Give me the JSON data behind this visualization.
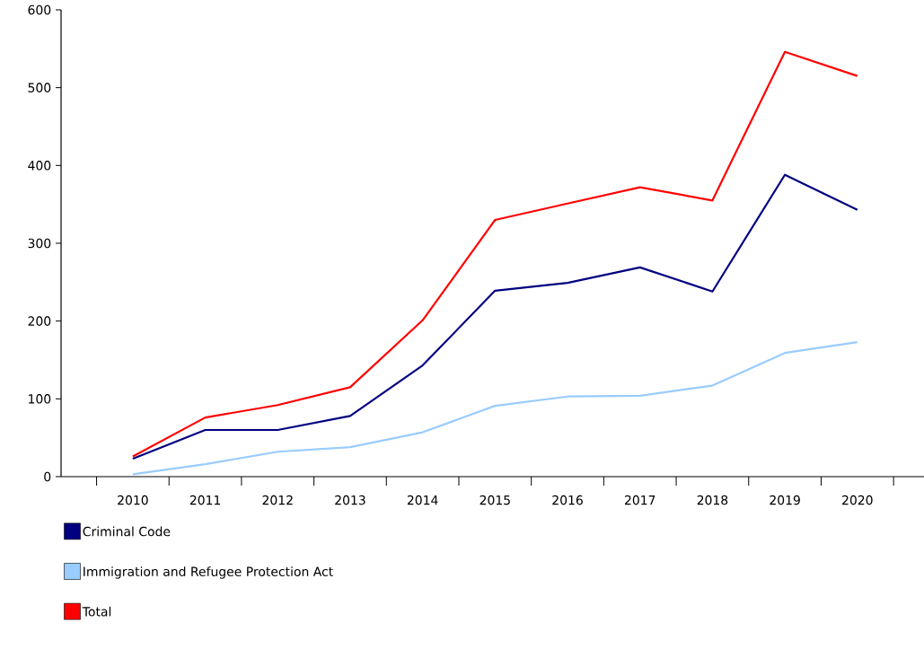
{
  "chart_data": {
    "type": "line",
    "categories": [
      "2010",
      "2011",
      "2012",
      "2013",
      "2014",
      "2015",
      "2016",
      "2017",
      "2018",
      "2019",
      "2020"
    ],
    "series": [
      {
        "name": "Criminal Code",
        "color": "#000080",
        "values": [
          23,
          60,
          60,
          78,
          143,
          239,
          249,
          269,
          238,
          388,
          343
        ]
      },
      {
        "name": "Immigration and Refugee Protection Act",
        "color": "#99ccff",
        "values": [
          3,
          16,
          32,
          38,
          57,
          91,
          103,
          104,
          117,
          159,
          173
        ]
      },
      {
        "name": "Total",
        "color": "#ff0000",
        "values": [
          26,
          76,
          92,
          115,
          201,
          330,
          351,
          372,
          355,
          546,
          515
        ]
      }
    ],
    "ylim": [
      0,
      600
    ],
    "yticks": [
      0,
      100,
      200,
      300,
      400,
      500,
      600
    ],
    "grid": false,
    "legend": "bottom",
    "marker": "none",
    "line_style": "solid"
  }
}
